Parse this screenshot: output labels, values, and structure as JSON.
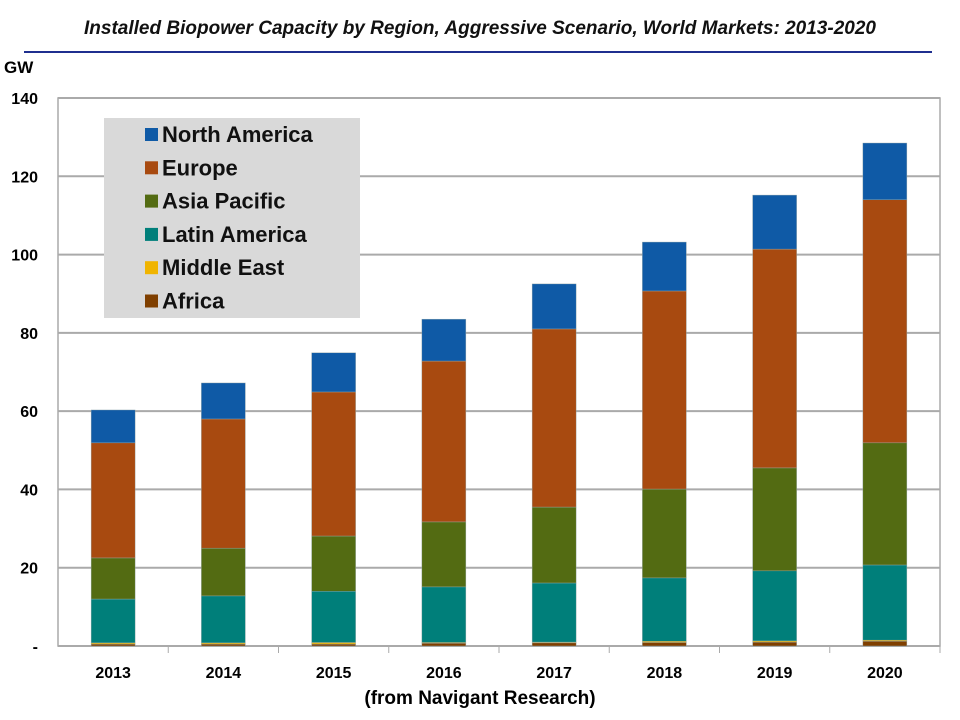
{
  "chart_data": {
    "type": "bar",
    "stacked": true,
    "title": "Installed Biopower Capacity by Region, Aggressive Scenario, World Markets: 2013-2020",
    "ylabel": "GW",
    "xlabel": "",
    "source": "(from Navigant Research)",
    "ylim": [
      0,
      140
    ],
    "yticks": [
      0,
      20,
      40,
      60,
      80,
      100,
      120,
      140
    ],
    "ytick_labels": [
      "-",
      "20",
      "40",
      "60",
      "80",
      "100",
      "120",
      "140"
    ],
    "grid": true,
    "legend_position": "top-left",
    "categories": [
      "2013",
      "2014",
      "2015",
      "2016",
      "2017",
      "2018",
      "2019",
      "2020"
    ],
    "series": [
      {
        "name": "Africa",
        "color": "#7f3f00",
        "values": [
          0.5,
          0.5,
          0.5,
          0.7,
          0.8,
          0.9,
          1.0,
          1.2
        ]
      },
      {
        "name": "Middle East",
        "color": "#f0b400",
        "values": [
          0.3,
          0.3,
          0.4,
          0.2,
          0.2,
          0.3,
          0.3,
          0.3
        ]
      },
      {
        "name": "Latin America",
        "color": "#007f7a",
        "values": [
          11.2,
          12.0,
          13.1,
          14.2,
          15.1,
          16.2,
          17.9,
          19.2
        ]
      },
      {
        "name": "Asia Pacific",
        "color": "#536b12",
        "values": [
          10.5,
          12.2,
          14.1,
          16.6,
          19.4,
          22.7,
          26.3,
          31.2
        ]
      },
      {
        "name": "Europe",
        "color": "#a84a10",
        "values": [
          29.4,
          33.0,
          36.8,
          41.1,
          45.5,
          50.6,
          55.9,
          62.1
        ]
      },
      {
        "name": "North America",
        "color": "#0f5aa6",
        "values": [
          8.4,
          9.2,
          10.0,
          10.7,
          11.5,
          12.5,
          13.8,
          14.5
        ]
      }
    ]
  }
}
